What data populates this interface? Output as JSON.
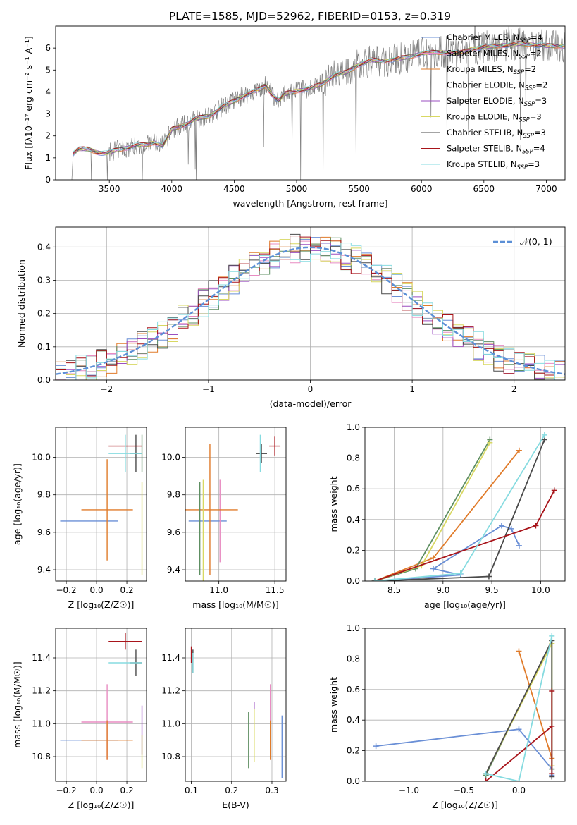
{
  "title": "PLATE=1585, MJD=52962, FIBERID=0153, z=0.319",
  "models": [
    {
      "label": "Chabrier MILES, N",
      "n": "4",
      "color": "#6a8fd6"
    },
    {
      "label": "Salpeter MILES, N",
      "n": "2",
      "color": "#e88cc2"
    },
    {
      "label": "Kroupa MILES, N",
      "n": "2",
      "color": "#e07b2a"
    },
    {
      "label": "Chabrier ELODIE, N",
      "n": "2",
      "color": "#5e8f62"
    },
    {
      "label": "Salpeter ELODIE, N",
      "n": "3",
      "color": "#9b4fc0"
    },
    {
      "label": "Kroupa ELODIE, N",
      "n": "3",
      "color": "#d8d862"
    },
    {
      "label": "Chabrier STELIB, N",
      "n": "3",
      "color": "#4a4a4a"
    },
    {
      "label": "Salpeter STELIB, N",
      "n": "4",
      "color": "#a8141a"
    },
    {
      "label": "Kroupa STELIB, N",
      "n": "3",
      "color": "#86dbe0"
    }
  ],
  "nssp_sub": "SSP",
  "chart_data": [
    {
      "id": "spectrum",
      "type": "line",
      "xlabel": "wavelength [Angstrom, rest frame]",
      "ylabel": "Flux [fλ10⁻¹⁷ erg cm⁻² s⁻¹ A⁻¹]",
      "xlim": [
        3070,
        7150
      ],
      "ylim": [
        0,
        7
      ],
      "xticks": [
        3500,
        4000,
        4500,
        5000,
        5500,
        6000,
        6500,
        7000
      ],
      "yticks": [
        0,
        1,
        2,
        3,
        4,
        5,
        6
      ],
      "continuum": [
        [
          3200,
          0.0
        ],
        [
          3210,
          1.2
        ],
        [
          3260,
          1.4
        ],
        [
          3330,
          1.4
        ],
        [
          3400,
          1.25
        ],
        [
          3480,
          1.2
        ],
        [
          3550,
          1.35
        ],
        [
          3640,
          1.45
        ],
        [
          3700,
          1.55
        ],
        [
          3800,
          1.6
        ],
        [
          3860,
          1.7
        ],
        [
          3930,
          1.55
        ],
        [
          4000,
          2.3
        ],
        [
          4100,
          2.5
        ],
        [
          4200,
          2.8
        ],
        [
          4300,
          2.9
        ],
        [
          4400,
          3.3
        ],
        [
          4500,
          3.6
        ],
        [
          4600,
          3.9
        ],
        [
          4700,
          4.1
        ],
        [
          4750,
          4.3
        ],
        [
          4800,
          3.9
        ],
        [
          4860,
          3.6
        ],
        [
          4900,
          3.9
        ],
        [
          5000,
          4.05
        ],
        [
          5100,
          4.15
        ],
        [
          5200,
          4.35
        ],
        [
          5300,
          4.75
        ],
        [
          5400,
          4.9
        ],
        [
          5500,
          5.25
        ],
        [
          5600,
          5.45
        ],
        [
          5700,
          5.4
        ],
        [
          5800,
          5.5
        ],
        [
          5900,
          5.6
        ],
        [
          6000,
          5.75
        ],
        [
          6100,
          5.8
        ],
        [
          6200,
          5.8
        ],
        [
          6300,
          5.75
        ],
        [
          6400,
          5.95
        ],
        [
          6500,
          6.05
        ],
        [
          6600,
          6.1
        ],
        [
          6700,
          6.15
        ],
        [
          6800,
          6.2
        ],
        [
          6900,
          6.15
        ],
        [
          7000,
          6.1
        ]
      ]
    },
    {
      "id": "residuals",
      "type": "line",
      "xlabel": "(data-model)/error",
      "ylabel": "Normed distribution",
      "xlim": [
        -2.5,
        2.5
      ],
      "ylim": [
        0,
        0.46
      ],
      "xticks": [
        -2,
        -1,
        0,
        1,
        2
      ],
      "yticks": [
        0.0,
        0.1,
        0.2,
        0.3,
        0.4
      ],
      "legend": "𝒩(0, 1)",
      "bin_width": 0.1
    },
    {
      "id": "age-vs-Z",
      "type": "scatter",
      "xlabel": "Z [log₁₀(Z/Z☉)]",
      "ylabel": "age  [log₁₀(age/yr)]",
      "xlim": [
        -0.27,
        0.33
      ],
      "ylim": [
        9.34,
        10.16
      ],
      "xticks": [
        -0.2,
        0.0,
        0.2
      ],
      "yticks": [
        9.4,
        9.6,
        9.8,
        10.0
      ],
      "points": [
        {
          "x": -0.05,
          "xerr": 0.19,
          "y": 9.66,
          "yerr": 0.0
        },
        {
          "x": 0.07,
          "xerr": 0.0,
          "y": 9.43,
          "yerr": 0.0
        },
        {
          "x": 0.07,
          "xerr": 0.17,
          "y": 9.72,
          "yerr": 0.27
        },
        {
          "x": 0.3,
          "xerr": 0.0,
          "y": 10.02,
          "yerr": 0.1
        },
        {
          "x": 0.3,
          "xerr": 0.0,
          "y": 9.43,
          "yerr": 0.0
        },
        {
          "x": 0.3,
          "xerr": 0.0,
          "y": 9.62,
          "yerr": 0.25
        },
        {
          "x": 0.26,
          "xerr": 0.04,
          "y": 10.02,
          "yerr": 0.1
        },
        {
          "x": 0.19,
          "xerr": 0.11,
          "y": 10.06,
          "yerr": 0.0
        },
        {
          "x": 0.19,
          "xerr": 0.11,
          "y": 10.02,
          "yerr": 0.1
        }
      ]
    },
    {
      "id": "age-vs-mass",
      "type": "scatter",
      "xlabel": "mass [log₁₀(M/M☉)]",
      "ylabel": "",
      "xlim": [
        10.7,
        11.6
      ],
      "ylim": [
        9.34,
        10.16
      ],
      "xticks": [
        11.0,
        11.5
      ],
      "yticks": [
        9.4,
        9.6,
        9.8,
        10.0
      ],
      "points": [
        {
          "x": 10.9,
          "xerr": 0.17,
          "y": 9.66,
          "yerr": 0.0
        },
        {
          "x": 11.01,
          "xerr": 0.0,
          "y": 9.66,
          "yerr": 0.22
        },
        {
          "x": 10.92,
          "xerr": 0.25,
          "y": 9.72,
          "yerr": 0.35
        },
        {
          "x": 10.83,
          "xerr": 0.0,
          "y": 9.62,
          "yerr": 0.25
        },
        {
          "x": 10.96,
          "xerr": 0.0,
          "y": 9.43,
          "yerr": 0.0
        },
        {
          "x": 10.86,
          "xerr": 0.0,
          "y": 9.6,
          "yerr": 0.28
        },
        {
          "x": 11.38,
          "xerr": 0.05,
          "y": 10.02,
          "yerr": 0.05
        },
        {
          "x": 11.5,
          "xerr": 0.05,
          "y": 10.06,
          "yerr": 0.05
        },
        {
          "x": 11.37,
          "xerr": 0.0,
          "y": 10.02,
          "yerr": 0.1
        }
      ]
    },
    {
      "id": "mass-weight-vs-age",
      "type": "line",
      "xlabel": "age  [log₁₀(age/yr)]",
      "ylabel": "mass weight",
      "xlim": [
        8.2,
        10.25
      ],
      "ylim": [
        0,
        1
      ],
      "xticks": [
        8.5,
        9.0,
        9.5,
        10.0
      ],
      "yticks": [
        0.0,
        0.2,
        0.4,
        0.6,
        0.8,
        1.0
      ],
      "series": [
        {
          "x": [
            8.3,
            9.18,
            8.9,
            9.6,
            9.7,
            9.78
          ],
          "y": [
            0.0,
            0.04,
            0.08,
            0.36,
            0.34,
            0.23
          ]
        },
        {
          "x": [
            8.3,
            8.9,
            9.78
          ],
          "y": [
            0.0,
            0.15,
            0.85
          ]
        },
        {
          "x": [
            8.3,
            8.72,
            9.48
          ],
          "y": [
            0.0,
            0.08,
            0.92
          ]
        },
        {
          "x": [
            8.3,
            8.78,
            9.48
          ],
          "y": [
            0.0,
            0.1,
            0.9
          ]
        },
        {
          "x": [
            8.3,
            9.47,
            10.04
          ],
          "y": [
            0.0,
            0.03,
            0.92
          ]
        },
        {
          "x": [
            8.3,
            9.95,
            10.14
          ],
          "y": [
            0.0,
            0.36,
            0.59
          ]
        },
        {
          "x": [
            8.3,
            9.18,
            10.04
          ],
          "y": [
            0.0,
            0.05,
            0.95
          ]
        }
      ]
    },
    {
      "id": "mass-vs-Z",
      "type": "scatter",
      "xlabel": "Z [log₁₀(Z/Z☉)]",
      "ylabel": "mass [log₁₀(M/M☉)]",
      "xlim": [
        -0.27,
        0.33
      ],
      "ylim": [
        10.65,
        11.58
      ],
      "xticks": [
        -0.2,
        0.0,
        0.2
      ],
      "yticks": [
        10.8,
        11.0,
        11.2,
        11.4
      ],
      "points": [
        {
          "x": -0.05,
          "xerr": 0.19,
          "y": 10.9,
          "yerr": 0.0
        },
        {
          "x": 0.07,
          "xerr": 0.17,
          "y": 11.01,
          "yerr": 0.23
        },
        {
          "x": 0.07,
          "xerr": 0.17,
          "y": 10.9,
          "yerr": 0.12
        },
        {
          "x": 0.3,
          "xerr": 0.0,
          "y": 10.83,
          "yerr": 0.0
        },
        {
          "x": 0.3,
          "xerr": 0.0,
          "y": 10.96,
          "yerr": 0.15
        },
        {
          "x": 0.3,
          "xerr": 0.0,
          "y": 10.83,
          "yerr": 0.1
        },
        {
          "x": 0.26,
          "xerr": 0.04,
          "y": 11.37,
          "yerr": 0.08
        },
        {
          "x": 0.19,
          "xerr": 0.11,
          "y": 11.5,
          "yerr": 0.05
        },
        {
          "x": 0.19,
          "xerr": 0.11,
          "y": 11.37,
          "yerr": 0.0
        }
      ]
    },
    {
      "id": "mass-vs-EBV",
      "type": "scatter",
      "xlabel": "E(B-V)",
      "ylabel": "",
      "xlim": [
        0.085,
        0.335
      ],
      "ylim": [
        10.65,
        11.58
      ],
      "xticks": [
        0.1,
        0.2,
        0.3
      ],
      "yticks": [
        10.8,
        11.0,
        11.2,
        11.4
      ],
      "points": [
        {
          "x": 0.325,
          "xerr": 0.0,
          "y": 10.86,
          "yerr": 0.19
        },
        {
          "x": 0.296,
          "xerr": 0.0,
          "y": 11.01,
          "yerr": 0.23
        },
        {
          "x": 0.296,
          "xerr": 0.0,
          "y": 10.9,
          "yerr": 0.12
        },
        {
          "x": 0.242,
          "xerr": 0.0,
          "y": 10.9,
          "yerr": 0.17
        },
        {
          "x": 0.256,
          "xerr": 0.0,
          "y": 11.0,
          "yerr": 0.13
        },
        {
          "x": 0.256,
          "xerr": 0.0,
          "y": 10.93,
          "yerr": 0.16
        },
        {
          "x": 0.104,
          "xerr": 0.0,
          "y": 11.38,
          "yerr": 0.07
        },
        {
          "x": 0.1,
          "xerr": 0.0,
          "y": 11.42,
          "yerr": 0.05
        },
        {
          "x": 0.104,
          "xerr": 0.0,
          "y": 11.37,
          "yerr": 0.06
        }
      ]
    },
    {
      "id": "mass-weight-vs-Z",
      "type": "line",
      "xlabel": "Z [log₁₀(Z/Z☉)]",
      "ylabel": "mass weight",
      "xlim": [
        -1.4,
        0.42
      ],
      "ylim": [
        0,
        1
      ],
      "xticks": [
        -1.0,
        -0.5,
        0.0
      ],
      "yticks": [
        0.0,
        0.2,
        0.4,
        0.6,
        0.8,
        1.0
      ],
      "series": [
        {
          "x": [
            -1.3,
            0.0,
            0.3,
            0.3
          ],
          "y": [
            0.23,
            0.34,
            0.08,
            0.04
          ]
        },
        {
          "x": [
            0.0,
            0.3,
            0.3
          ],
          "y": [
            0.85,
            0.15,
            0.1
          ]
        },
        {
          "x": [
            -0.3,
            0.3,
            0.3
          ],
          "y": [
            0.04,
            0.92,
            0.08
          ]
        },
        {
          "x": [
            -0.3,
            0.3,
            0.3
          ],
          "y": [
            0.05,
            0.9,
            0.1
          ]
        },
        {
          "x": [
            -0.3,
            0.3,
            0.3
          ],
          "y": [
            0.05,
            0.92,
            0.03
          ]
        },
        {
          "x": [
            -0.3,
            0.3,
            0.3,
            0.3
          ],
          "y": [
            0.0,
            0.36,
            0.59,
            0.05
          ]
        },
        {
          "x": [
            -0.3,
            0.0,
            0.3
          ],
          "y": [
            0.05,
            0.0,
            0.95
          ]
        }
      ]
    }
  ]
}
